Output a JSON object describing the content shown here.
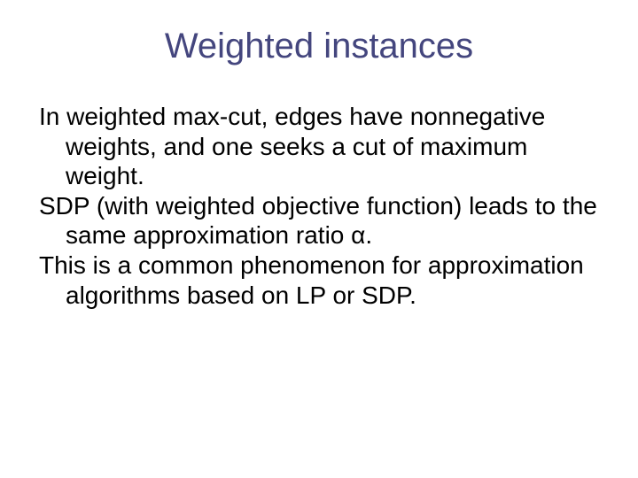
{
  "slide": {
    "title": "Weighted instances",
    "title_color": "#44467e",
    "body_color": "#000000",
    "background_color": "#ffffff",
    "title_fontsize": 40,
    "body_fontsize": 28,
    "paragraphs": [
      "In weighted max-cut, edges have nonnegative weights, and one seeks a cut of maximum weight.",
      "SDP (with weighted objective function) leads to the same approximation ratio α.",
      "This is a common phenomenon for approximation algorithms based on LP or SDP."
    ]
  }
}
